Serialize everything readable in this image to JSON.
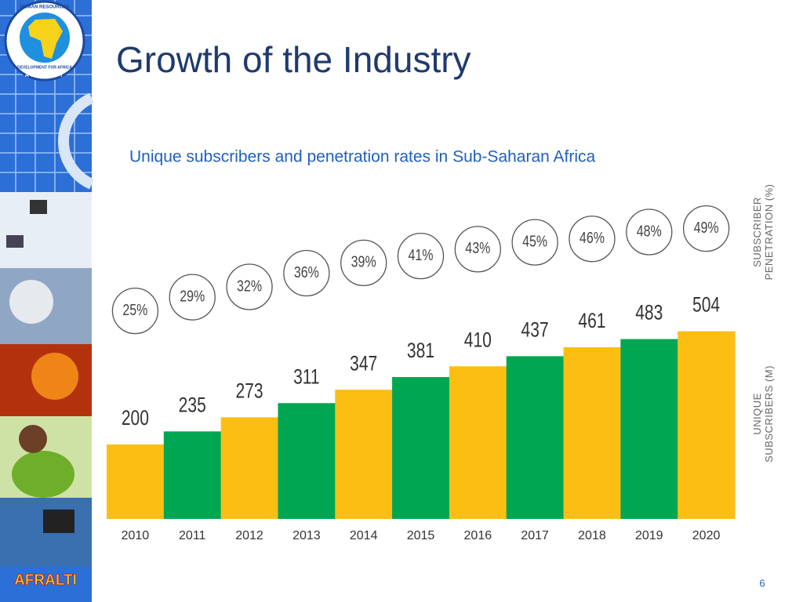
{
  "title": "Growth of the Industry",
  "page_number": "6",
  "logo": {
    "ring_top": "HUMAN RESOURCES",
    "ring_bottom": "DEVELOPMENT FOR AFRICA",
    "ring_name": "AFRALTI",
    "footer": "AFRALTI"
  },
  "chart_data": {
    "type": "bar",
    "subtitle": "Unique subscribers and penetration rates in Sub-Saharan Africa",
    "categories": [
      "2010",
      "2011",
      "2012",
      "2013",
      "2014",
      "2015",
      "2016",
      "2017",
      "2018",
      "2019",
      "2020"
    ],
    "y_label": [
      "UNIQUE",
      "SUBSCRIBERS (M)"
    ],
    "y2_label": [
      "SUBSCRIBER",
      "PENETRATION (%)"
    ],
    "series": [
      {
        "name": "Unique subscribers (M)",
        "colors": [
          "#fdbe14",
          "#00a651",
          "#fdbe14",
          "#00a651",
          "#fdbe14",
          "#00a651",
          "#fdbe14",
          "#00a651",
          "#fdbe14",
          "#00a651",
          "#fdbe14"
        ],
        "values": [
          200,
          235,
          273,
          311,
          347,
          381,
          410,
          437,
          461,
          483,
          504
        ]
      },
      {
        "name": "Subscriber penetration (%)",
        "axis": "y2",
        "color": "#555555",
        "values": [
          25,
          29,
          32,
          36,
          39,
          41,
          43,
          45,
          46,
          48,
          49
        ],
        "value_labels": [
          "25%",
          "29%",
          "32%",
          "36%",
          "39%",
          "41%",
          "43%",
          "45%",
          "46%",
          "48%",
          "49%"
        ]
      }
    ]
  }
}
